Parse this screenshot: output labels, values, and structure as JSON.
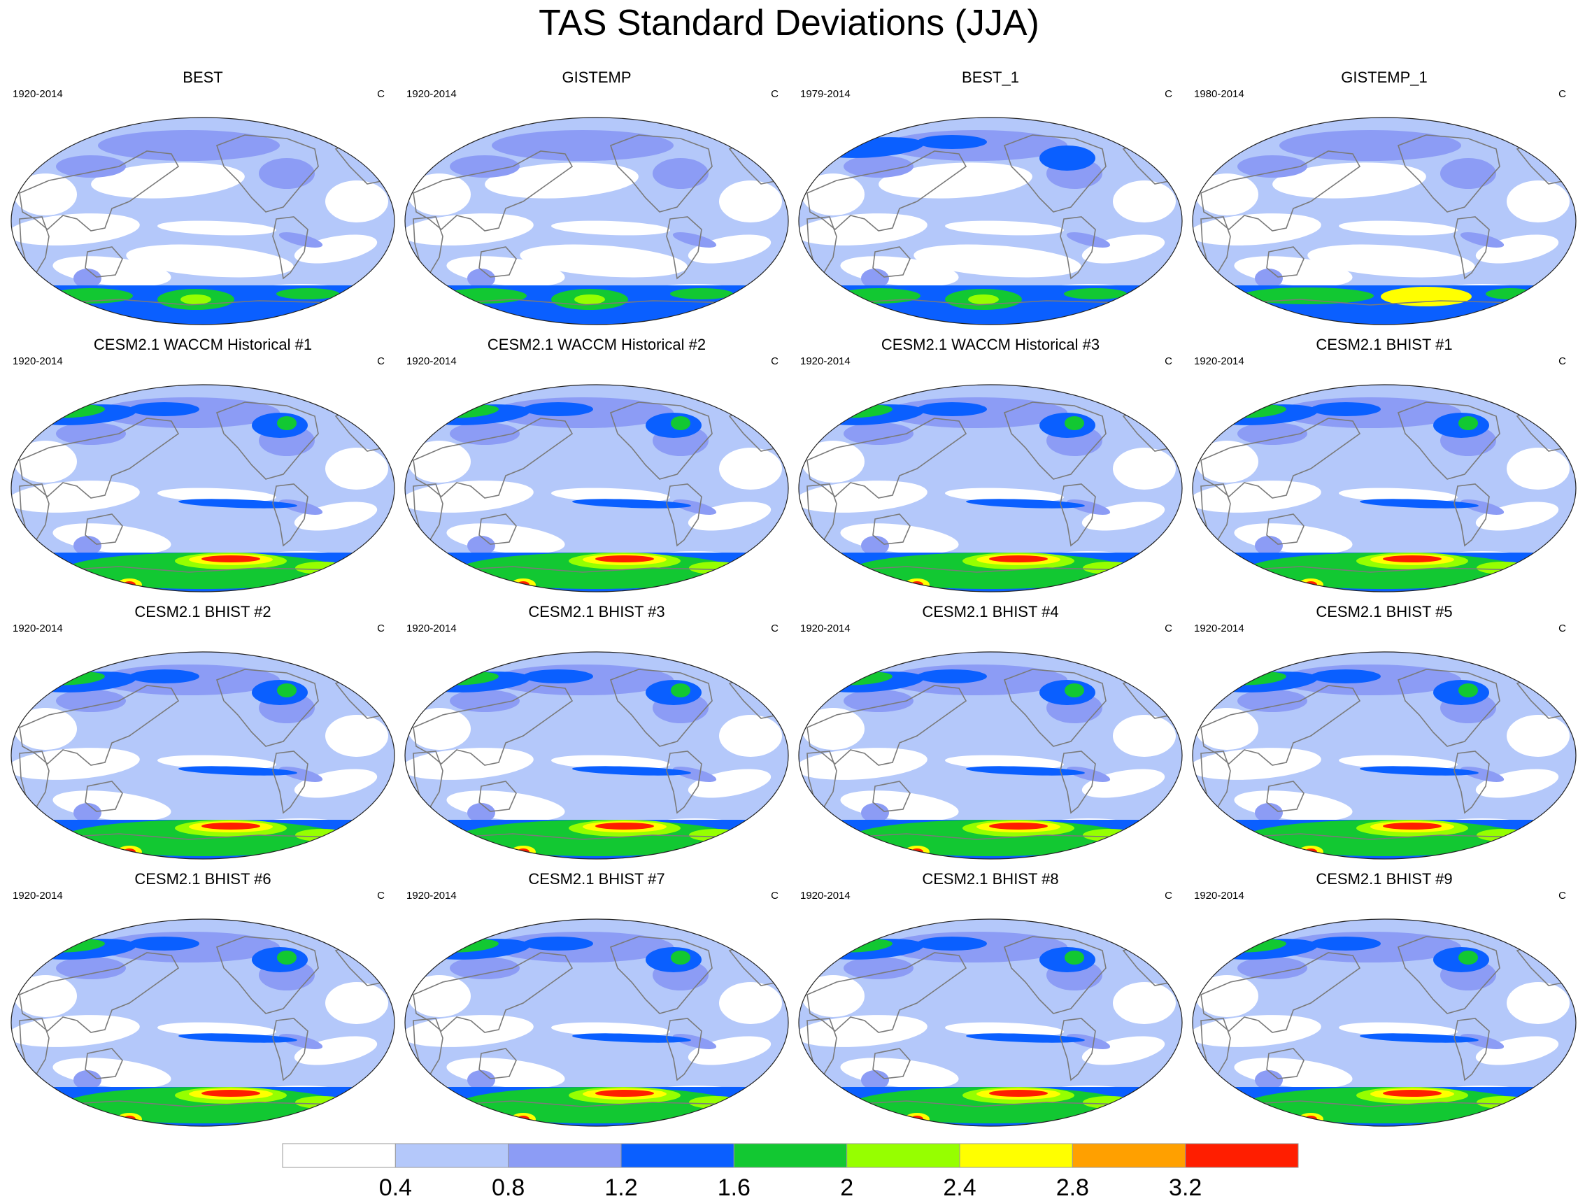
{
  "title": "TAS Standard Deviations (JJA)",
  "chart_data": {
    "type": "heatmap",
    "title": "TAS Standard Deviations (JJA)",
    "projection": "Robinson (global)",
    "panels": [
      {
        "title": "BEST",
        "left": "1920-2014",
        "right": "C",
        "style": "obs",
        "ant": 1,
        "nh": 0
      },
      {
        "title": "GISTEMP",
        "left": "1920-2014",
        "right": "C",
        "style": "obs",
        "ant": 1,
        "nh": 0
      },
      {
        "title": "BEST_1",
        "left": "1979-2014",
        "right": "C",
        "style": "obs",
        "ant": 1,
        "nh": 1
      },
      {
        "title": "GISTEMP_1",
        "left": "1980-2014",
        "right": "C",
        "style": "obs",
        "ant": 2,
        "nh": 0
      },
      {
        "title": "CESM2.1 WACCM Historical #1",
        "left": "1920-2014",
        "right": "C",
        "style": "model",
        "ant": 3,
        "nh": 2
      },
      {
        "title": "CESM2.1 WACCM Historical #2",
        "left": "1920-2014",
        "right": "C",
        "style": "model",
        "ant": 3,
        "nh": 2
      },
      {
        "title": "CESM2.1 WACCM Historical #3",
        "left": "1920-2014",
        "right": "C",
        "style": "model",
        "ant": 3,
        "nh": 2
      },
      {
        "title": "CESM2.1 BHIST #1",
        "left": "1920-2014",
        "right": "C",
        "style": "model",
        "ant": 3,
        "nh": 2
      },
      {
        "title": "CESM2.1 BHIST #2",
        "left": "1920-2014",
        "right": "C",
        "style": "model",
        "ant": 3,
        "nh": 2
      },
      {
        "title": "CESM2.1 BHIST #3",
        "left": "1920-2014",
        "right": "C",
        "style": "model",
        "ant": 3,
        "nh": 2
      },
      {
        "title": "CESM2.1 BHIST #4",
        "left": "1920-2014",
        "right": "C",
        "style": "model",
        "ant": 3,
        "nh": 2
      },
      {
        "title": "CESM2.1 BHIST #5",
        "left": "1920-2014",
        "right": "C",
        "style": "model",
        "ant": 3,
        "nh": 2
      },
      {
        "title": "CESM2.1 BHIST #6",
        "left": "1920-2014",
        "right": "C",
        "style": "model",
        "ant": 3,
        "nh": 2
      },
      {
        "title": "CESM2.1 BHIST #7",
        "left": "1920-2014",
        "right": "C",
        "style": "model",
        "ant": 3,
        "nh": 2
      },
      {
        "title": "CESM2.1 BHIST #8",
        "left": "1920-2014",
        "right": "C",
        "style": "model",
        "ant": 3,
        "nh": 2
      },
      {
        "title": "CESM2.1 BHIST #9",
        "left": "1920-2014",
        "right": "C",
        "style": "model",
        "ant": 3,
        "nh": 2
      }
    ],
    "colorbar": {
      "levels": [
        "0.4",
        "0.8",
        "1.2",
        "1.6",
        "2",
        "2.4",
        "2.8",
        "3.2"
      ],
      "colors": [
        "#ffffff",
        "#b4c8fa",
        "#8c9cf5",
        "#0a5fff",
        "#12c832",
        "#96ff00",
        "#ffff00",
        "#ffa000",
        "#ff1e00"
      ],
      "orientation": "horizontal",
      "placement": "bottom"
    }
  }
}
